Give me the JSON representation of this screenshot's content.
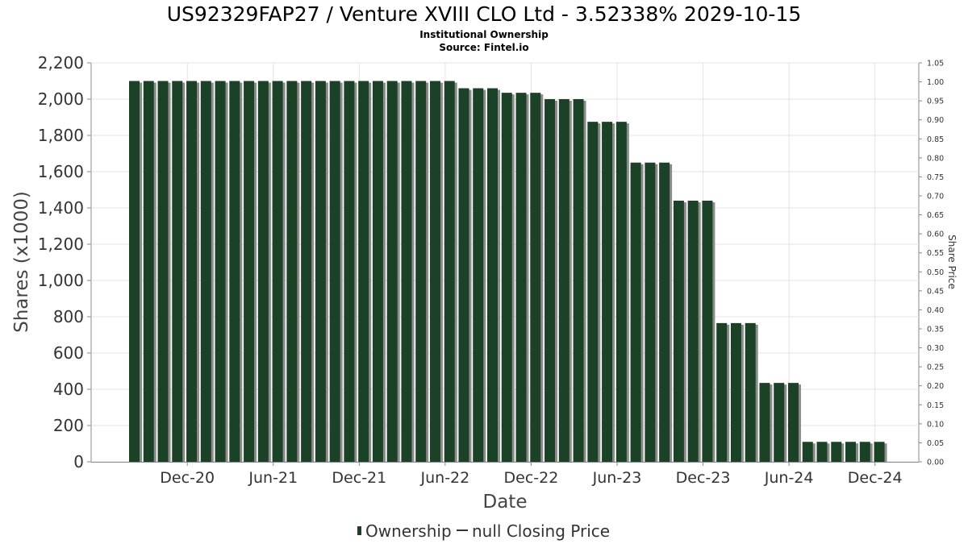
{
  "chart_data": {
    "type": "bar",
    "title": "US92329FAP27 / Venture XVIII CLO Ltd - 3.52338% 2029-10-15",
    "subtitle": "Institutional Ownership",
    "source": "Source: Fintel.io",
    "xlabel": "Date",
    "ylabel": "Shares (x1000)",
    "y2label": "Share Price",
    "ylim": [
      0,
      2200
    ],
    "y2lim": [
      0,
      1.05
    ],
    "yticks": [
      "0",
      "200",
      "400",
      "600",
      "800",
      "1,000",
      "1,200",
      "1,400",
      "1,600",
      "1,800",
      "2,000",
      "2,200"
    ],
    "y2ticks": [
      "0.00",
      "0.05",
      "0.10",
      "0.15",
      "0.20",
      "0.25",
      "0.30",
      "0.35",
      "0.40",
      "0.45",
      "0.50",
      "0.55",
      "0.60",
      "0.65",
      "0.70",
      "0.75",
      "0.80",
      "0.85",
      "0.90",
      "0.95",
      "1.00",
      "1.05"
    ],
    "xticks": [
      {
        "label": "Dec-20",
        "index": 3.7
      },
      {
        "label": "Jun-21",
        "index": 9.7
      },
      {
        "label": "Dec-21",
        "index": 15.7
      },
      {
        "label": "Jun-22",
        "index": 21.7
      },
      {
        "label": "Dec-22",
        "index": 27.7
      },
      {
        "label": "Jun-23",
        "index": 33.7
      },
      {
        "label": "Dec-23",
        "index": 39.7
      },
      {
        "label": "Jun-24",
        "index": 45.7
      },
      {
        "label": "Dec-24",
        "index": 51.7
      }
    ],
    "grid": true,
    "legend_position": "bottom",
    "series": [
      {
        "name": "Ownership",
        "color": "#1b4227",
        "values": [
          2100,
          2100,
          2100,
          2100,
          2100,
          2100,
          2100,
          2100,
          2100,
          2100,
          2100,
          2100,
          2100,
          2100,
          2100,
          2100,
          2100,
          2100,
          2100,
          2100,
          2100,
          2100,
          2100,
          2060,
          2060,
          2060,
          2035,
          2035,
          2035,
          2000,
          2000,
          2000,
          1875,
          1875,
          1875,
          1650,
          1650,
          1650,
          1440,
          1440,
          1440,
          765,
          765,
          765,
          435,
          435,
          435,
          110,
          110,
          110,
          110,
          110,
          110
        ]
      },
      {
        "name": "null Closing Price",
        "color": "#333333",
        "values": []
      }
    ]
  }
}
